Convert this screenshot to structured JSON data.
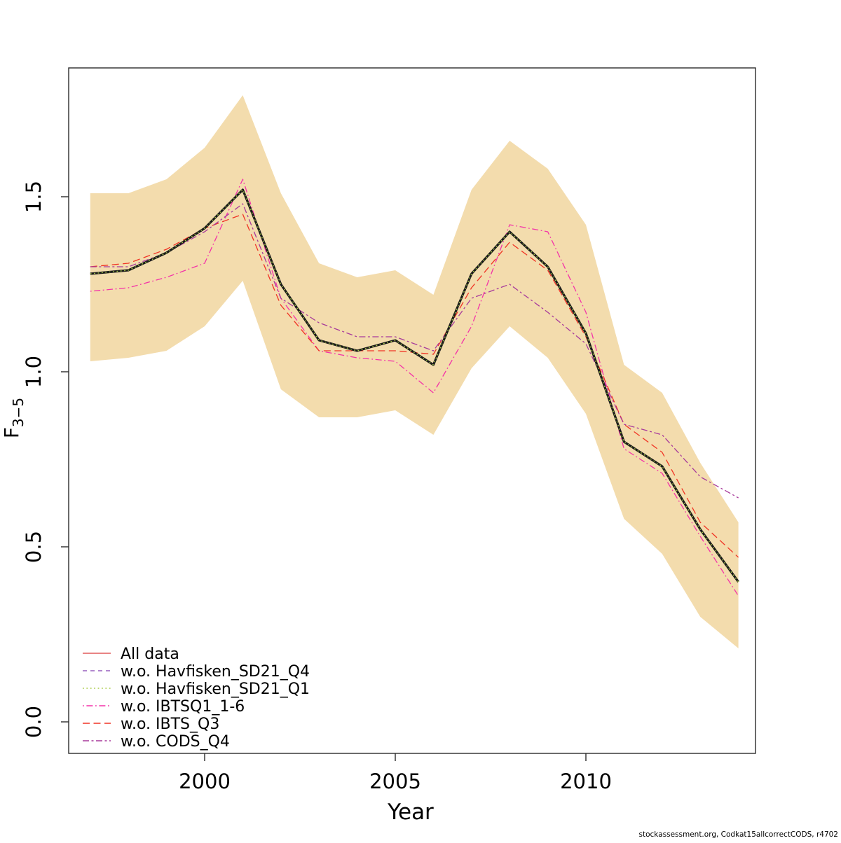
{
  "figure": {
    "xlabel": "Year",
    "ylabel_base": "F",
    "ylabel_sub": "3−5",
    "footer": "stockassessment.org, Codkat15allcorrectCODS, r4702",
    "x_tick_labels": [
      "2000",
      "2005",
      "2010"
    ],
    "y_tick_labels": [
      "0.0",
      "0.5",
      "1.0",
      "1.5"
    ]
  },
  "legend": {
    "items": [
      {
        "label": "All data",
        "color": "#E05C5C",
        "dash": "solid"
      },
      {
        "label": "w.o. Havfisken_SD21_Q4",
        "color": "#9760BF",
        "dash": "dashed"
      },
      {
        "label": "w.o. Havfisken_SD21_Q1",
        "color": "#A8CC46",
        "dash": "dotted"
      },
      {
        "label": "w.o. IBTSQ1_1-6",
        "color": "#F332A8",
        "dash": "dashdot"
      },
      {
        "label": "w.o. IBTS_Q3",
        "color": "#F03425",
        "dash": "longdash"
      },
      {
        "label": "w.o. CODS_Q4",
        "color": "#A73A9B",
        "dash": "twodash"
      }
    ]
  },
  "chart_data": {
    "type": "line",
    "title": "",
    "xlabel": "Year",
    "ylabel": "F_3-5",
    "xlim": [
      1997,
      2014
    ],
    "ylim": [
      0.0,
      1.85
    ],
    "grid": false,
    "legend_position": "bottom-left",
    "x_ticks": [
      2000,
      2005,
      2010
    ],
    "y_tick_values": [
      0.0,
      0.5,
      1.0,
      1.5
    ],
    "years": [
      1997,
      1998,
      1999,
      2000,
      2001,
      2002,
      2003,
      2004,
      2005,
      2006,
      2007,
      2008,
      2009,
      2010,
      2011,
      2012,
      2013,
      2014
    ],
    "band": {
      "name": "confidence-interval",
      "color": "#F3DCAD",
      "upper": [
        1.51,
        1.51,
        1.55,
        1.64,
        1.79,
        1.51,
        1.31,
        1.27,
        1.29,
        1.22,
        1.52,
        1.66,
        1.58,
        1.42,
        1.02,
        0.94,
        0.74,
        0.57
      ],
      "lower": [
        1.03,
        1.04,
        1.06,
        1.13,
        1.26,
        0.95,
        0.87,
        0.87,
        0.89,
        0.82,
        1.01,
        1.13,
        1.04,
        0.88,
        0.58,
        0.48,
        0.3,
        0.21
      ]
    },
    "series": [
      {
        "name": "w.o. Havfisken_SD21_Q4",
        "color": "#9760BF",
        "dash": "dashed",
        "width": 1.3,
        "values": [
          1.28,
          1.29,
          1.34,
          1.41,
          1.52,
          1.25,
          1.09,
          1.06,
          1.09,
          1.02,
          1.28,
          1.4,
          1.3,
          1.11,
          0.8,
          0.73,
          0.55,
          0.4
        ]
      },
      {
        "name": "w.o. IBTSQ1_1-6",
        "color": "#F332A8",
        "dash": "dashdot",
        "width": 1.3,
        "values": [
          1.23,
          1.24,
          1.27,
          1.31,
          1.55,
          1.21,
          1.06,
          1.04,
          1.03,
          0.94,
          1.13,
          1.42,
          1.4,
          1.17,
          0.78,
          0.71,
          0.53,
          0.36
        ]
      },
      {
        "name": "w.o. IBTS_Q3",
        "color": "#F03425",
        "dash": "longdash",
        "width": 1.3,
        "values": [
          1.3,
          1.31,
          1.35,
          1.41,
          1.45,
          1.19,
          1.06,
          1.06,
          1.06,
          1.05,
          1.24,
          1.37,
          1.29,
          1.1,
          0.85,
          0.77,
          0.57,
          0.47
        ]
      },
      {
        "name": "w.o. CODS_Q4",
        "color": "#A73A9B",
        "dash": "twodash",
        "width": 1.3,
        "values": [
          1.3,
          1.3,
          1.34,
          1.4,
          1.48,
          1.21,
          1.14,
          1.1,
          1.1,
          1.06,
          1.21,
          1.25,
          1.17,
          1.08,
          0.85,
          0.82,
          0.7,
          0.64
        ]
      },
      {
        "name": "All data",
        "color": "#E05C5C",
        "dash": "solid",
        "width": 1.3,
        "values": [
          1.28,
          1.29,
          1.34,
          1.41,
          1.52,
          1.25,
          1.09,
          1.06,
          1.09,
          1.02,
          1.28,
          1.4,
          1.3,
          1.11,
          0.8,
          0.73,
          0.55,
          0.4
        ]
      },
      {
        "name": "base-fit",
        "color": "#1B1B1B",
        "dash": "solid",
        "width": 3.2,
        "values": [
          1.28,
          1.29,
          1.34,
          1.41,
          1.52,
          1.25,
          1.09,
          1.06,
          1.09,
          1.02,
          1.28,
          1.4,
          1.3,
          1.11,
          0.8,
          0.73,
          0.55,
          0.4
        ]
      },
      {
        "name": "w.o. Havfisken_SD21_Q1",
        "color": "#A8CC46",
        "dash": "dotted",
        "width": 1.3,
        "values": [
          1.28,
          1.29,
          1.34,
          1.41,
          1.52,
          1.25,
          1.09,
          1.06,
          1.09,
          1.02,
          1.28,
          1.4,
          1.3,
          1.11,
          0.8,
          0.73,
          0.55,
          0.4
        ]
      }
    ]
  }
}
